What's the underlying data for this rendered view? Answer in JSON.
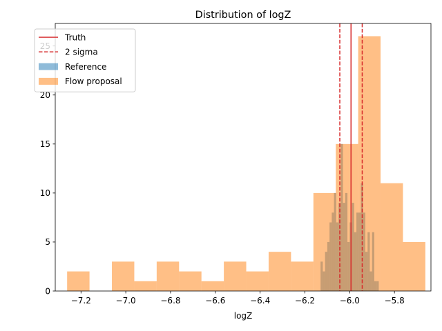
{
  "chart_data": {
    "type": "bar",
    "title": "Distribution of logZ",
    "xlabel": "logZ",
    "ylabel": "",
    "xlim": [
      -7.315,
      -5.637
    ],
    "ylim": [
      0,
      27.3
    ],
    "xticks": [
      -7.2,
      -7.0,
      -6.8,
      -6.6,
      -6.4,
      -6.2,
      -6.0,
      -5.8
    ],
    "xtick_labels": [
      "−7.2",
      "−7.0",
      "−6.8",
      "−6.6",
      "−6.4",
      "−6.2",
      "−6.0",
      "−5.8"
    ],
    "yticks": [
      0,
      5,
      10,
      15,
      20,
      25
    ],
    "ytick_labels": [
      "0",
      "5",
      "10",
      "15",
      "20",
      "25"
    ],
    "legend": {
      "placement": "upper-left",
      "entries": [
        {
          "label": "Truth",
          "kind": "line-solid",
          "color": "#d62728"
        },
        {
          "label": "2 sigma",
          "kind": "line-dashed",
          "color": "#d62728"
        },
        {
          "label": "Reference",
          "kind": "patch",
          "color": "#1f77b4"
        },
        {
          "label": "Flow proposal",
          "kind": "patch",
          "color": "#ff7f0e"
        }
      ]
    },
    "series": [
      {
        "name": "Reference",
        "color": "#1f77b4",
        "alpha": 0.5,
        "bins": [
          {
            "x0": -6.13,
            "x1": -6.12,
            "count": 3
          },
          {
            "x0": -6.12,
            "x1": -6.11,
            "count": 2
          },
          {
            "x0": -6.11,
            "x1": -6.1,
            "count": 4
          },
          {
            "x0": -6.1,
            "x1": -6.09,
            "count": 5
          },
          {
            "x0": -6.09,
            "x1": -6.08,
            "count": 7
          },
          {
            "x0": -6.08,
            "x1": -6.07,
            "count": 8
          },
          {
            "x0": -6.07,
            "x1": -6.06,
            "count": 10
          },
          {
            "x0": -6.06,
            "x1": -6.05,
            "count": 7
          },
          {
            "x0": -6.05,
            "x1": -6.04,
            "count": 9
          },
          {
            "x0": -6.04,
            "x1": -6.03,
            "count": 15
          },
          {
            "x0": -6.03,
            "x1": -6.02,
            "count": 9
          },
          {
            "x0": -6.02,
            "x1": -6.01,
            "count": 10
          },
          {
            "x0": -6.01,
            "x1": -6.0,
            "count": 5
          },
          {
            "x0": -6.0,
            "x1": -5.99,
            "count": 7
          },
          {
            "x0": -5.99,
            "x1": -5.98,
            "count": 9
          },
          {
            "x0": -5.98,
            "x1": -5.97,
            "count": 6
          },
          {
            "x0": -5.97,
            "x1": -5.96,
            "count": 8
          },
          {
            "x0": -5.96,
            "x1": -5.95,
            "count": 8
          },
          {
            "x0": -5.95,
            "x1": -5.94,
            "count": 11
          },
          {
            "x0": -5.94,
            "x1": -5.93,
            "count": 8
          },
          {
            "x0": -5.93,
            "x1": -5.92,
            "count": 4
          },
          {
            "x0": -5.92,
            "x1": -5.91,
            "count": 6
          },
          {
            "x0": -5.91,
            "x1": -5.9,
            "count": 2
          },
          {
            "x0": -5.9,
            "x1": -5.89,
            "count": 6
          },
          {
            "x0": -5.89,
            "x1": -5.88,
            "count": 1
          },
          {
            "x0": -5.88,
            "x1": -5.87,
            "count": 1
          }
        ]
      },
      {
        "name": "Flow proposal",
        "color": "#ff7f0e",
        "alpha": 0.5,
        "bins": [
          {
            "x0": -7.262,
            "x1": -7.162,
            "count": 2
          },
          {
            "x0": -7.162,
            "x1": -7.062,
            "count": 0
          },
          {
            "x0": -7.062,
            "x1": -6.962,
            "count": 3
          },
          {
            "x0": -6.962,
            "x1": -6.862,
            "count": 1
          },
          {
            "x0": -6.862,
            "x1": -6.762,
            "count": 3
          },
          {
            "x0": -6.762,
            "x1": -6.662,
            "count": 2
          },
          {
            "x0": -6.662,
            "x1": -6.562,
            "count": 1
          },
          {
            "x0": -6.562,
            "x1": -6.462,
            "count": 3
          },
          {
            "x0": -6.462,
            "x1": -6.362,
            "count": 2
          },
          {
            "x0": -6.362,
            "x1": -6.262,
            "count": 4
          },
          {
            "x0": -6.262,
            "x1": -6.162,
            "count": 3
          },
          {
            "x0": -6.162,
            "x1": -6.062,
            "count": 10
          },
          {
            "x0": -6.062,
            "x1": -5.962,
            "count": 15
          },
          {
            "x0": -5.962,
            "x1": -5.862,
            "count": 26
          },
          {
            "x0": -5.862,
            "x1": -5.762,
            "count": 11
          },
          {
            "x0": -5.762,
            "x1": -5.662,
            "count": 5
          }
        ]
      }
    ],
    "vlines": [
      {
        "name": "Truth",
        "x": -5.994,
        "style": "solid",
        "color": "#d62728"
      },
      {
        "name": "2 sigma",
        "x": -6.044,
        "style": "dashed",
        "color": "#d62728"
      },
      {
        "name": "2 sigma",
        "x": -5.944,
        "style": "dashed",
        "color": "#d62728"
      }
    ],
    "grid": false
  }
}
